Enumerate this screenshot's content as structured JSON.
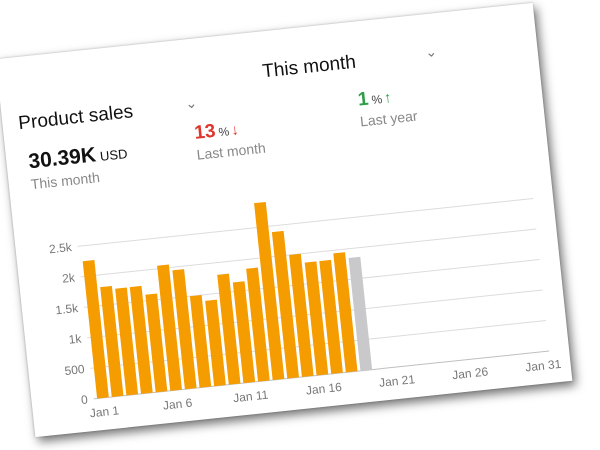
{
  "header": {
    "title": "Product sales",
    "period": "This month"
  },
  "metrics": {
    "total_value": "30.39K",
    "total_unit": "USD",
    "total_caption": "This month",
    "last_month_value": "13",
    "last_month_caption": "Last month",
    "last_year_value": "1",
    "last_year_caption": "Last year",
    "percent_sign": "%",
    "down_arrow": "↓",
    "up_arrow": "↑"
  },
  "colors": {
    "bar_actual": "#F59C00",
    "bar_today": "#C9C9CC",
    "decline": "#e0342c",
    "growth": "#2e9e48"
  },
  "chart_data": {
    "type": "bar",
    "x": [
      "Jan 1",
      "Jan 2",
      "Jan 3",
      "Jan 4",
      "Jan 5",
      "Jan 6",
      "Jan 7",
      "Jan 8",
      "Jan 9",
      "Jan 10",
      "Jan 11",
      "Jan 12",
      "Jan 13",
      "Jan 14",
      "Jan 15",
      "Jan 16",
      "Jan 17",
      "Jan 18",
      "Jan 19",
      "Jan 20",
      "Jan 21",
      "Jan 22",
      "Jan 23",
      "Jan 24",
      "Jan 25",
      "Jan 26",
      "Jan 27",
      "Jan 28",
      "Jan 29",
      "Jan 30",
      "Jan 31"
    ],
    "series": [
      {
        "color": "#F59C00",
        "values": [
          2250,
          1800,
          1750,
          1750,
          1600,
          2050,
          1950,
          1500,
          1400,
          1800,
          1650,
          1850,
          2900,
          2400,
          2000,
          1850,
          1850,
          1950,
          null,
          null,
          null,
          null,
          null,
          null,
          null,
          null,
          null,
          null,
          null,
          null,
          null
        ]
      },
      {
        "color": "#C9C9CC",
        "values": [
          null,
          null,
          null,
          null,
          null,
          null,
          null,
          null,
          null,
          null,
          null,
          null,
          null,
          null,
          null,
          null,
          null,
          null,
          1850,
          null,
          null,
          null,
          null,
          null,
          null,
          null,
          null,
          null,
          null,
          null,
          null
        ]
      }
    ],
    "x_tick_labels": [
      "Jan 1",
      "Jan 6",
      "Jan 11",
      "Jan 16",
      "Jan 21",
      "Jan 26",
      "Jan 31"
    ],
    "y_tick_labels": [
      "0",
      "500",
      "1k",
      "1.5k",
      "2k",
      "2.5k"
    ],
    "ylim": [
      0,
      3000
    ],
    "grid": true
  }
}
